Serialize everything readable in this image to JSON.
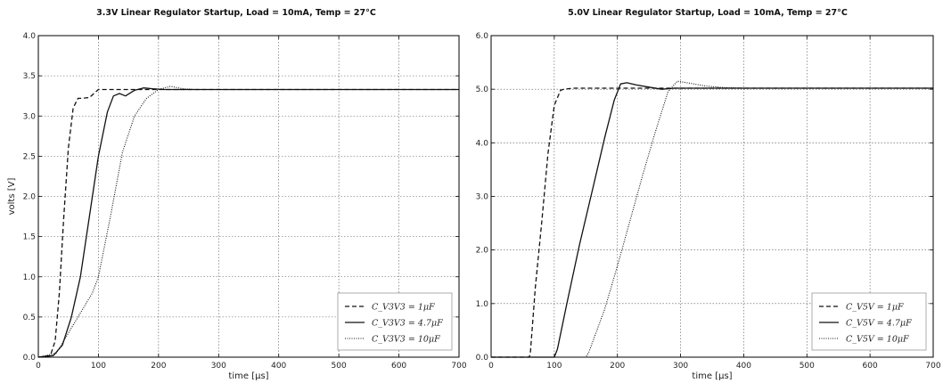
{
  "chart_data": [
    {
      "type": "line",
      "title": "3.3V Linear Regulator Startup, Load = 10mA, Temp = 27°C",
      "xlabel": "time [µs]",
      "ylabel": "volts [V]",
      "xlim": [
        0,
        700
      ],
      "ylim": [
        0,
        4.0
      ],
      "xticks": [
        0,
        100,
        200,
        300,
        400,
        500,
        600,
        700
      ],
      "yticks": [
        0,
        0.5,
        1.0,
        1.5,
        2.0,
        2.5,
        3.0,
        3.5,
        4.0
      ],
      "ytick_labels": [
        "0.0",
        "0.5",
        "1.0",
        "1.5",
        "2.0",
        "2.5",
        "3.0",
        "3.5",
        "4.0"
      ],
      "grid": true,
      "legend_position": "bottom-right",
      "series": [
        {
          "name": "C_V3V3 = 1μF",
          "style": "dashed",
          "x": [
            0,
            20,
            28,
            35,
            42,
            50,
            58,
            66,
            72,
            85,
            100,
            700
          ],
          "y": [
            0,
            0.02,
            0.2,
            0.8,
            1.7,
            2.6,
            3.1,
            3.22,
            3.22,
            3.23,
            3.33,
            3.33
          ]
        },
        {
          "name": "C_V3V3 = 4.7μF",
          "style": "solid",
          "x": [
            0,
            25,
            40,
            55,
            70,
            85,
            100,
            115,
            125,
            135,
            145,
            160,
            175,
            190,
            210,
            230,
            700
          ],
          "y": [
            0,
            0.02,
            0.15,
            0.5,
            1.0,
            1.75,
            2.5,
            3.05,
            3.25,
            3.28,
            3.25,
            3.32,
            3.35,
            3.34,
            3.33,
            3.33,
            3.33
          ]
        },
        {
          "name": "C_V3V3 = 10μF",
          "style": "dotted",
          "x": [
            0,
            30,
            50,
            70,
            90,
            100,
            120,
            140,
            160,
            180,
            200,
            220,
            240,
            260,
            700
          ],
          "y": [
            0,
            0.05,
            0.3,
            0.55,
            0.8,
            1.0,
            1.75,
            2.55,
            3.0,
            3.22,
            3.33,
            3.37,
            3.34,
            3.33,
            3.33
          ]
        }
      ],
      "legend": [
        "C_V3V3 = 1μF",
        "C_V3V3 = 4.7μF",
        "C_V3V3 = 10μF"
      ]
    },
    {
      "type": "line",
      "title": "5.0V Linear Regulator Startup, Load = 10mA, Temp = 27°C",
      "xlabel": "time [µs]",
      "ylabel": "volts [V]",
      "xlim": [
        0,
        700
      ],
      "ylim": [
        0,
        6.0
      ],
      "xticks": [
        0,
        100,
        200,
        300,
        400,
        500,
        600,
        700
      ],
      "yticks": [
        0,
        1.0,
        2.0,
        3.0,
        4.0,
        5.0,
        6.0
      ],
      "ytick_labels": [
        "0.0",
        "1.0",
        "2.0",
        "3.0",
        "4.0",
        "5.0",
        "6.0"
      ],
      "grid": true,
      "legend_position": "bottom-right",
      "series": [
        {
          "name": "C_V5V = 1μF",
          "style": "dashed",
          "x": [
            0,
            60,
            62,
            70,
            80,
            90,
            100,
            110,
            115,
            130,
            700
          ],
          "y": [
            0,
            0,
            0.05,
            1.3,
            2.5,
            3.8,
            4.7,
            4.98,
            5.0,
            5.02,
            5.02
          ]
        },
        {
          "name": "C_V5V = 4.7μF",
          "style": "solid",
          "x": [
            0,
            100,
            105,
            120,
            140,
            160,
            180,
            195,
            205,
            215,
            230,
            250,
            270,
            290,
            310,
            700
          ],
          "y": [
            0,
            0,
            0.15,
            1.0,
            2.1,
            3.1,
            4.1,
            4.8,
            5.1,
            5.12,
            5.08,
            5.04,
            5.0,
            5.02,
            5.02,
            5.02
          ]
        },
        {
          "name": "C_V5V = 10μF",
          "style": "dotted",
          "x": [
            0,
            150,
            155,
            180,
            200,
            220,
            240,
            260,
            280,
            295,
            310,
            340,
            370,
            400,
            430,
            700
          ],
          "y": [
            0,
            0,
            0.1,
            0.9,
            1.7,
            2.55,
            3.4,
            4.2,
            4.95,
            5.15,
            5.12,
            5.06,
            5.03,
            5.02,
            5.02,
            5.02
          ]
        }
      ],
      "legend": [
        "C_V5V = 1μF",
        "C_V5V = 4.7μF",
        "C_V5V = 10μF"
      ]
    }
  ]
}
